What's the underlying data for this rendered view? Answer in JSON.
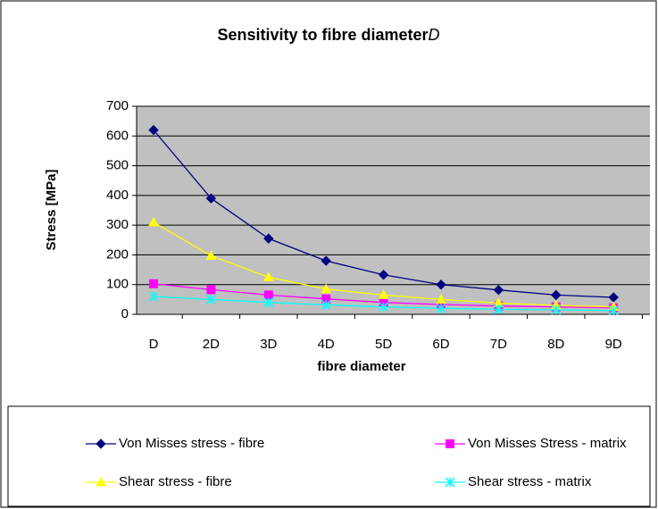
{
  "chart_data": {
    "type": "line",
    "title": "Sensitivity to fibre diameter",
    "title_symbol": "D",
    "x_label": "fibre diameter",
    "y_label": "Stress [MPa]",
    "categories": [
      "D",
      "2D",
      "3D",
      "4D",
      "5D",
      "6D",
      "7D",
      "8D",
      "9D"
    ],
    "series": [
      {
        "name": "Von Misses stress - fibre",
        "color": "#000080",
        "marker": "diamond",
        "values": [
          620,
          390,
          255,
          180,
          133,
          100,
          82,
          65,
          57
        ]
      },
      {
        "name": "Von Misses Stress - matrix",
        "color": "#ff00ff",
        "marker": "square",
        "values": [
          103,
          83,
          65,
          52,
          40,
          33,
          28,
          25,
          22
        ]
      },
      {
        "name": "Shear stress - fibre",
        "color": "#ffff00",
        "marker": "triangle",
        "values": [
          310,
          197,
          125,
          85,
          65,
          50,
          38,
          30,
          25
        ]
      },
      {
        "name": "Shear stress - matrix",
        "color": "#00ffff",
        "marker": "star",
        "values": [
          60,
          50,
          40,
          32,
          25,
          20,
          17,
          15,
          13
        ]
      }
    ],
    "ylim": [
      0,
      700
    ],
    "yticks": [
      0,
      100,
      200,
      300,
      400,
      500,
      600,
      700
    ],
    "grid": true,
    "legend": "bottom"
  }
}
